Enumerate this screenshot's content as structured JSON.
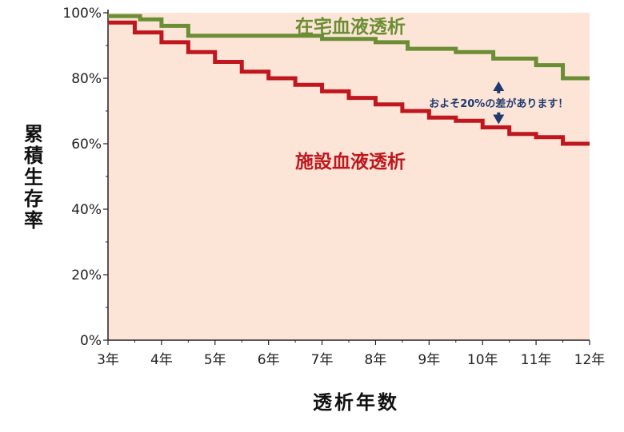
{
  "chart_data": {
    "type": "line",
    "title": "",
    "xlabel": "透析年数",
    "ylabel": "累積生存率",
    "categories": [
      "3年",
      "4年",
      "5年",
      "6年",
      "7年",
      "8年",
      "9年",
      "10年",
      "11年",
      "12年"
    ],
    "x_range": [
      3,
      12
    ],
    "ylim": [
      0,
      100
    ],
    "y_ticks": [
      0,
      20,
      40,
      60,
      80,
      100
    ],
    "y_tick_labels": [
      "0%",
      "20%",
      "40%",
      "60%",
      "80%",
      "100%"
    ],
    "grid": false,
    "plot_background": "#fce5d6",
    "series": [
      {
        "name": "在宅血液透析",
        "color": "#6b8e35",
        "step": true,
        "x": [
          3,
          3.6,
          4,
          4.5,
          7,
          8,
          8.6,
          9.5,
          10.2,
          11,
          11.5,
          12
        ],
        "y": [
          99,
          98,
          96,
          93,
          92,
          91,
          89,
          88,
          86,
          84,
          80,
          80
        ]
      },
      {
        "name": "施設血液透析",
        "color": "#c0161e",
        "step": true,
        "x": [
          3,
          3.5,
          4,
          4.5,
          5,
          5.5,
          6,
          6.5,
          7,
          7.5,
          8,
          8.5,
          9,
          9.5,
          10,
          10.5,
          11,
          11.5,
          12
        ],
        "y": [
          97,
          94,
          91,
          88,
          85,
          82,
          80,
          78,
          76,
          74,
          72,
          70,
          68,
          67,
          65,
          63,
          62,
          60,
          60
        ]
      }
    ],
    "annotation": {
      "text": "およそ20%の差があります！",
      "x": 10.3,
      "y_from": 80,
      "y_to": 65,
      "arrow_color": "#1f3a6e"
    }
  }
}
